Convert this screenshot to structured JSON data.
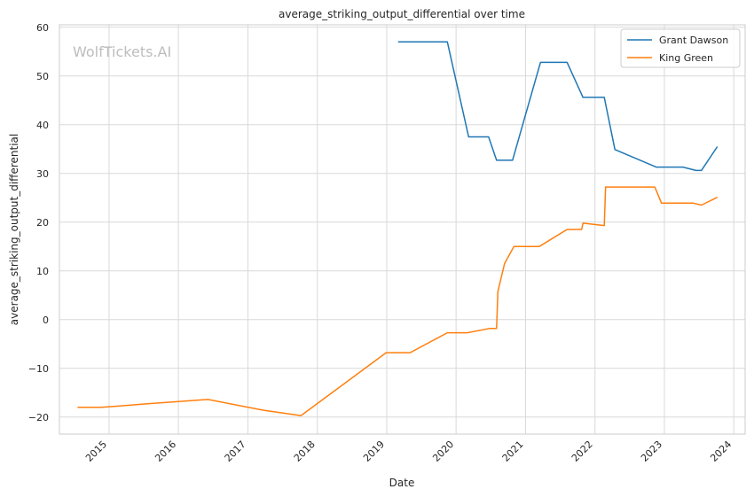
{
  "chart_data": {
    "type": "line",
    "title": "average_striking_output_differential over time",
    "xlabel": "Date",
    "ylabel": "average_striking_output_differential",
    "watermark": "WolfTickets.AI",
    "x_ticks": [
      "2015",
      "2016",
      "2017",
      "2018",
      "2019",
      "2020",
      "2021",
      "2022",
      "2023",
      "2024"
    ],
    "y_ticks": [
      60,
      50,
      40,
      30,
      20,
      10,
      0,
      -10,
      -20
    ],
    "ylim": [
      -23.5,
      60.5
    ],
    "xlim": [
      "2014-04-15",
      "2024-03-01"
    ],
    "grid": true,
    "legend_position": "top-right",
    "series": [
      {
        "name": "Grant Dawson",
        "color": "#1f77b4",
        "points": [
          [
            "2019-03-02",
            57.0
          ],
          [
            "2019-11-16",
            57.0
          ],
          [
            "2020-03-07",
            37.5
          ],
          [
            "2020-06-20",
            37.5
          ],
          [
            "2020-08-01",
            32.7
          ],
          [
            "2020-10-24",
            32.7
          ],
          [
            "2021-03-20",
            52.8
          ],
          [
            "2021-08-07",
            52.8
          ],
          [
            "2021-10-30",
            45.6
          ],
          [
            "2022-02-19",
            45.6
          ],
          [
            "2022-04-16",
            34.9
          ],
          [
            "2022-11-19",
            31.3
          ],
          [
            "2023-04-08",
            31.3
          ],
          [
            "2023-06-17",
            30.6
          ],
          [
            "2023-07-15",
            30.6
          ],
          [
            "2023-10-07",
            35.5
          ]
        ]
      },
      {
        "name": "King Green",
        "color": "#ff7f0e",
        "points": [
          [
            "2014-07-19",
            -18.0
          ],
          [
            "2014-11-22",
            -18.0
          ],
          [
            "2015-07-15",
            -17.3
          ],
          [
            "2016-06-04",
            -16.4
          ],
          [
            "2017-03-25",
            -18.6
          ],
          [
            "2017-10-07",
            -19.7
          ],
          [
            "2018-12-29",
            -6.8
          ],
          [
            "2019-05-04",
            -6.8
          ],
          [
            "2019-11-16",
            -2.7
          ],
          [
            "2020-02-29",
            -2.7
          ],
          [
            "2020-06-27",
            -1.8
          ],
          [
            "2020-08-01",
            -1.8
          ],
          [
            "2020-08-08",
            5.8
          ],
          [
            "2020-09-12",
            11.5
          ],
          [
            "2020-10-31",
            15.0
          ],
          [
            "2021-03-13",
            15.0
          ],
          [
            "2021-08-07",
            18.5
          ],
          [
            "2021-10-23",
            18.5
          ],
          [
            "2021-10-30",
            19.8
          ],
          [
            "2022-02-19",
            19.3
          ],
          [
            "2022-02-26",
            27.2
          ],
          [
            "2022-11-12",
            27.2
          ],
          [
            "2022-12-17",
            23.9
          ],
          [
            "2023-06-03",
            23.9
          ],
          [
            "2023-07-15",
            23.5
          ],
          [
            "2023-10-07",
            25.1
          ]
        ]
      }
    ]
  }
}
